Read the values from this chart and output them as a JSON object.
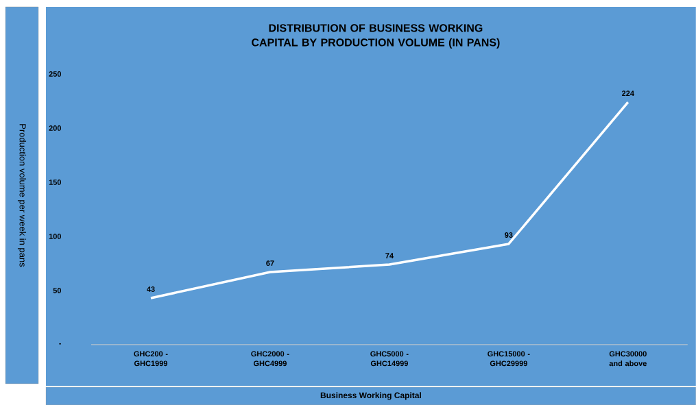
{
  "chart_data": {
    "type": "line",
    "title": "DISTRIBUTION OF BUSINESS WORKING CAPITAL BY PRODUCTION VOLUME (IN PANS)",
    "xlabel": "Business Working Capital",
    "ylabel": "Production volume per week in pans",
    "categories": [
      "GHC200 - GHC1999",
      "GHC2000 - GHC4999",
      "GHC5000 - GHC14999",
      "GHC15000 - GHC29999",
      "GHC30000 and above"
    ],
    "values": [
      43,
      67,
      74,
      93,
      224
    ],
    "color": "#ffffff",
    "ylim": [
      0,
      250
    ],
    "yticks": [
      {
        "value": 0,
        "label": "-"
      },
      50,
      100,
      150,
      200,
      250
    ],
    "data_labels": true
  }
}
